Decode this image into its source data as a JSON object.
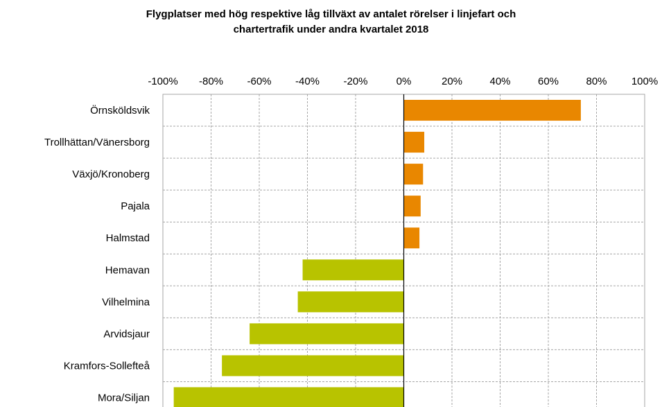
{
  "chart_data": {
    "type": "bar",
    "orientation": "horizontal",
    "title_lines": [
      "Flygplatser med hög respektive låg tillväxt av antalet rörelser i linjefart och",
      "chartertrafik under andra kvartalet 2018"
    ],
    "categories": [
      "Örnsköldsvik",
      "Trollhättan/Vänersborg",
      "Växjö/Kronoberg",
      "Pajala",
      "Halmstad",
      "Hemavan",
      "Vilhelmina",
      "Arvidsjaur",
      "Kramfors-Sollefteå",
      "Mora/Siljan"
    ],
    "values": [
      73.5,
      8.5,
      8,
      7,
      6.5,
      -42,
      -44,
      -64,
      -75.5,
      -95.5
    ],
    "xlim": [
      -100,
      100
    ],
    "x_ticks": [
      "-100%",
      "-80%",
      "-60%",
      "-40%",
      "-20%",
      "0%",
      "20%",
      "40%",
      "60%",
      "80%",
      "100%"
    ],
    "x_axis_position": "top",
    "grid": true,
    "legend": "none",
    "colors": {
      "positive": "#E98700",
      "negative": "#B8C300",
      "grid": "#a6a6a6",
      "axis": "#000000"
    }
  }
}
